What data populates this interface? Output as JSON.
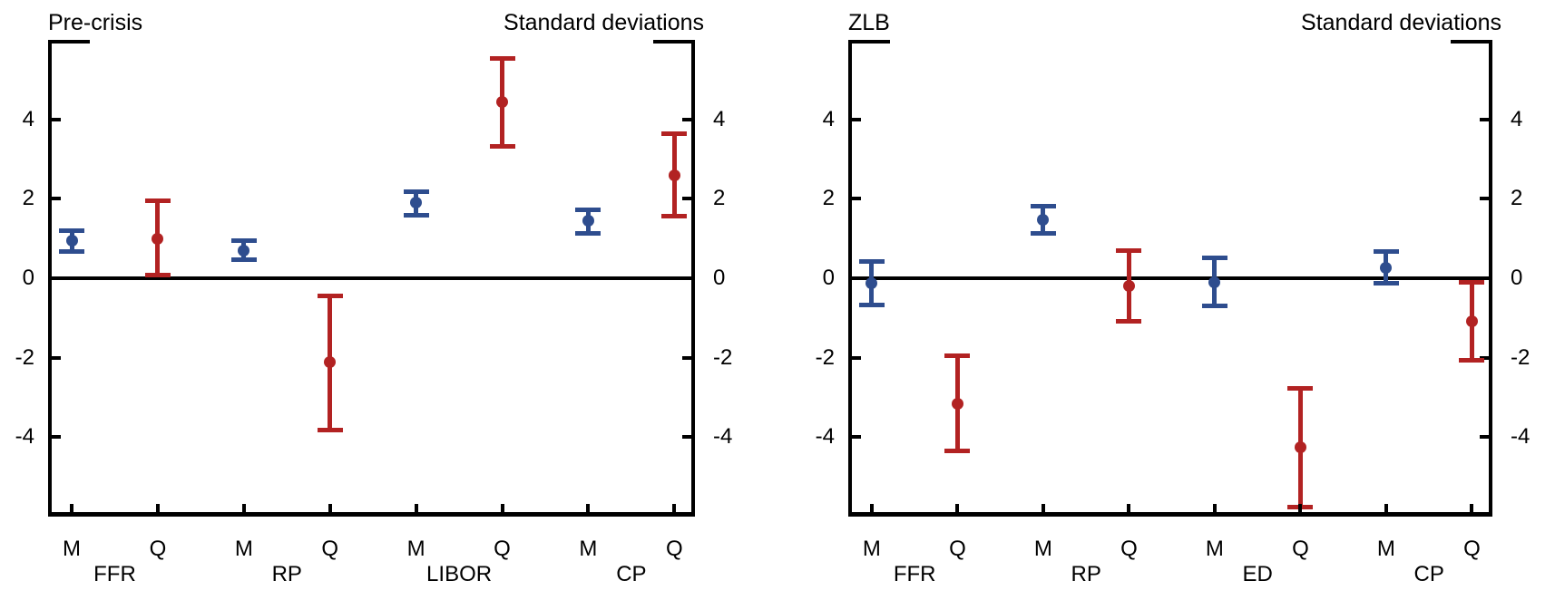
{
  "figure": {
    "background": "#ffffff",
    "axis_color": "#000000",
    "text_color": "#000000"
  },
  "series_colors": {
    "monthly": "#2e4d8e",
    "quarterly": "#b22222"
  },
  "chart_data": [
    {
      "type": "errorbar",
      "title": "Pre-crisis",
      "right_label": "Standard deviations",
      "ylim": [
        -6,
        6
      ],
      "yticks": [
        -4,
        -2,
        0,
        2,
        4
      ],
      "y_axis_label_sides": "both",
      "zero_line": true,
      "grid": false,
      "x_tick_labels": [
        "M",
        "Q",
        "M",
        "Q",
        "M",
        "Q",
        "M",
        "Q"
      ],
      "group_labels": [
        "FFR",
        "RP",
        "LIBOR",
        "CP"
      ],
      "points": [
        {
          "group": "FFR",
          "period": "M",
          "series": "monthly",
          "mean": 0.95,
          "ci_low": 0.68,
          "ci_high": 1.18
        },
        {
          "group": "FFR",
          "period": "Q",
          "series": "quarterly",
          "mean": 1.0,
          "ci_low": 0.1,
          "ci_high": 1.95
        },
        {
          "group": "RP",
          "period": "M",
          "series": "monthly",
          "mean": 0.7,
          "ci_low": 0.48,
          "ci_high": 0.93
        },
        {
          "group": "RP",
          "period": "Q",
          "series": "quarterly",
          "mean": -2.12,
          "ci_low": -3.82,
          "ci_high": -0.45
        },
        {
          "group": "LIBOR",
          "period": "M",
          "series": "monthly",
          "mean": 1.9,
          "ci_low": 1.6,
          "ci_high": 2.17
        },
        {
          "group": "LIBOR",
          "period": "Q",
          "series": "quarterly",
          "mean": 4.43,
          "ci_low": 3.32,
          "ci_high": 5.51
        },
        {
          "group": "CP",
          "period": "M",
          "series": "monthly",
          "mean": 1.45,
          "ci_low": 1.15,
          "ci_high": 1.72
        },
        {
          "group": "CP",
          "period": "Q",
          "series": "quarterly",
          "mean": 2.6,
          "ci_low": 1.57,
          "ci_high": 3.62
        }
      ]
    },
    {
      "type": "errorbar",
      "title": "ZLB",
      "right_label": "Standard deviations",
      "ylim": [
        -6,
        6
      ],
      "yticks": [
        -4,
        -2,
        0,
        2,
        4
      ],
      "y_axis_label_sides": "both",
      "zero_line": true,
      "grid": false,
      "x_tick_labels": [
        "M",
        "Q",
        "M",
        "Q",
        "M",
        "Q",
        "M",
        "Q"
      ],
      "group_labels": [
        "FFR",
        "RP",
        "ED",
        "CP"
      ],
      "points": [
        {
          "group": "FFR",
          "period": "M",
          "series": "monthly",
          "mean": -0.13,
          "ci_low": -0.67,
          "ci_high": 0.41
        },
        {
          "group": "FFR",
          "period": "Q",
          "series": "quarterly",
          "mean": -3.16,
          "ci_low": -4.34,
          "ci_high": -1.97
        },
        {
          "group": "RP",
          "period": "M",
          "series": "monthly",
          "mean": 1.47,
          "ci_low": 1.14,
          "ci_high": 1.8
        },
        {
          "group": "RP",
          "period": "Q",
          "series": "quarterly",
          "mean": -0.2,
          "ci_low": -1.08,
          "ci_high": 0.68
        },
        {
          "group": "ED",
          "period": "M",
          "series": "monthly",
          "mean": -0.11,
          "ci_low": -0.68,
          "ci_high": 0.5
        },
        {
          "group": "ED",
          "period": "Q",
          "series": "quarterly",
          "mean": -4.25,
          "ci_low": -5.76,
          "ci_high": -2.78
        },
        {
          "group": "CP",
          "period": "M",
          "series": "monthly",
          "mean": 0.27,
          "ci_low": -0.11,
          "ci_high": 0.66
        },
        {
          "group": "CP",
          "period": "Q",
          "series": "quarterly",
          "mean": -1.08,
          "ci_low": -2.05,
          "ci_high": -0.11
        }
      ]
    }
  ]
}
